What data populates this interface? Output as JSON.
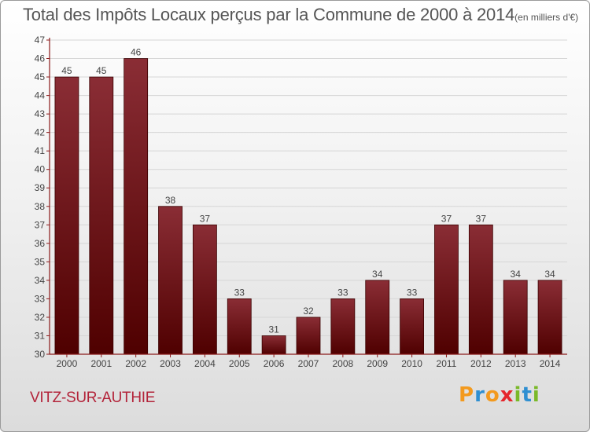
{
  "header": {
    "title": "Total des Impôts Locaux perçus par la Commune de 2000 à 2014",
    "unit": "(en milliers d'€)"
  },
  "footer": {
    "commune": "VITZ-SUR-AUTHIE",
    "brand_letters": [
      "P",
      "r",
      "o",
      "x",
      "i",
      "t",
      "i"
    ],
    "brand_colors": [
      "#f39a1e",
      "#2f8fd1",
      "#f39a1e",
      "#e5262c",
      "#7ab929",
      "#2f8fd1",
      "#7ab929"
    ]
  },
  "colors": {
    "bar_top": "#8a2d35",
    "bar_bottom": "#4f0000",
    "axis": "#8b1a1a",
    "grid": "#d6d6d6",
    "text": "#444444"
  },
  "chart_data": {
    "type": "bar",
    "categories": [
      "2000",
      "2001",
      "2002",
      "2003",
      "2004",
      "2005",
      "2006",
      "2007",
      "2008",
      "2009",
      "2010",
      "2011",
      "2012",
      "2013",
      "2014"
    ],
    "values": [
      45,
      45,
      46,
      38,
      37,
      33,
      31,
      32,
      33,
      34,
      33,
      37,
      37,
      34,
      34
    ],
    "title": "Total des Impôts Locaux perçus par la Commune de 2000 à 2014",
    "ylim": [
      30,
      47
    ],
    "yticks": [
      30,
      31,
      32,
      33,
      34,
      35,
      36,
      37,
      38,
      39,
      40,
      41,
      42,
      43,
      44,
      45,
      46,
      47
    ],
    "grid": true
  }
}
